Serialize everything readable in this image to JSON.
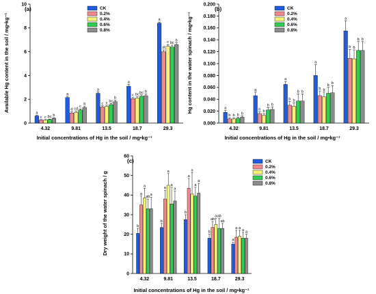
{
  "colors": {
    "CK": "#1f5ce0",
    "0.2%": "#f08a8a",
    "0.4%": "#f5f07a",
    "0.6%": "#33cc55",
    "0.8%": "#8c8c8c"
  },
  "chart_data": [
    {
      "panel": "(a)",
      "type": "bar",
      "xlabel": "Initial concentrations of Hg in the soil / mg•kg⁻¹",
      "ylabel": "Available Hg content in the soil / mg•kg⁻¹",
      "ylim": [
        0,
        10
      ],
      "yticks": [
        "0",
        "2",
        "4",
        "6",
        "8",
        "10"
      ],
      "categories": [
        "4.32",
        "9.81",
        "13.5",
        "18.7",
        "29.3"
      ],
      "legend": [
        "CK",
        "0.2%",
        "0.4%",
        "0.6%",
        "0.8%"
      ],
      "legend_position": "top-left",
      "series": [
        {
          "name": "CK",
          "values": [
            0.6,
            2.15,
            2.5,
            3.1,
            8.4
          ],
          "err": [
            0.05,
            0.1,
            0.12,
            0.15,
            0.1
          ]
        },
        {
          "name": "0.2%",
          "values": [
            0.25,
            0.85,
            1.35,
            2.05,
            6.0
          ],
          "err": [
            0.04,
            0.1,
            0.1,
            0.1,
            0.15
          ]
        },
        {
          "name": "0.4%",
          "values": [
            0.25,
            0.9,
            1.4,
            2.1,
            6.45
          ],
          "err": [
            0.04,
            0.1,
            0.1,
            0.1,
            0.15
          ]
        },
        {
          "name": "0.6%",
          "values": [
            0.3,
            1.1,
            1.55,
            2.25,
            6.4
          ],
          "err": [
            0.04,
            0.1,
            0.1,
            0.12,
            0.15
          ]
        },
        {
          "name": "0.8%",
          "values": [
            0.4,
            1.3,
            1.8,
            2.3,
            6.6
          ],
          "err": [
            0.05,
            0.1,
            0.12,
            0.15,
            0.15
          ]
        }
      ],
      "letters": [
        [
          "a",
          "c",
          "c",
          "bc",
          "b"
        ],
        [
          "a",
          "d",
          "cd",
          "c",
          "b"
        ],
        [
          "a",
          "c",
          "c",
          "bc",
          "b"
        ],
        [
          "a",
          "c",
          "bc",
          "bc",
          "b"
        ],
        [
          "a",
          "d",
          "c",
          "bc",
          "b"
        ]
      ]
    },
    {
      "panel": "(b)",
      "type": "bar",
      "xlabel": "Initial concentrations of Hg in the soil / mg•kg⁻¹",
      "ylabel": "Hg content in the water spinach / mg•kg⁻¹",
      "ylim": [
        0,
        0.2
      ],
      "yticks": [
        "0.000",
        "0.020",
        "0.040",
        "0.060",
        "0.080",
        "0.100",
        "0.120",
        "0.140",
        "0.160",
        "0.180",
        "0.200"
      ],
      "categories": [
        "4.32",
        "9.81",
        "13.5",
        "18.7",
        "29.3"
      ],
      "legend": [
        "CK",
        "0.2%",
        "0.4%",
        "0.6%",
        "0.8%"
      ],
      "legend_position": "top-left",
      "series": [
        {
          "name": "CK",
          "values": [
            0.018,
            0.046,
            0.065,
            0.08,
            0.155
          ],
          "err": [
            0.003,
            0.006,
            0.005,
            0.018,
            0.017
          ]
        },
        {
          "name": "0.2%",
          "values": [
            0.007,
            0.016,
            0.03,
            0.046,
            0.109
          ],
          "err": [
            0.002,
            0.003,
            0.006,
            0.008,
            0.015
          ]
        },
        {
          "name": "0.4%",
          "values": [
            0.007,
            0.013,
            0.028,
            0.044,
            0.108
          ],
          "err": [
            0.002,
            0.003,
            0.006,
            0.008,
            0.015
          ]
        },
        {
          "name": "0.6%",
          "values": [
            0.008,
            0.022,
            0.037,
            0.05,
            0.122
          ],
          "err": [
            0.002,
            0.004,
            0.012,
            0.01,
            0.015
          ]
        },
        {
          "name": "0.8%",
          "values": [
            0.01,
            0.023,
            0.037,
            0.051,
            0.122
          ],
          "err": [
            0.002,
            0.004,
            0.012,
            0.012,
            0.015
          ]
        }
      ],
      "letters": [
        [
          "a",
          "b",
          "b",
          "b",
          "b"
        ],
        [
          "a",
          "b",
          "b",
          "b",
          "b"
        ],
        [
          "a",
          "b",
          "b",
          "b",
          "b"
        ],
        [
          "a",
          "b",
          "b",
          "b",
          "b"
        ],
        [
          "a",
          "b",
          "b",
          "b",
          "b"
        ]
      ]
    },
    {
      "panel": "(c)",
      "type": "bar",
      "xlabel": "Initial concentrations of Hg in the soil / mg•kg⁻¹",
      "ylabel": "Dry weight of the water spinach / g",
      "ylim": [
        0,
        60
      ],
      "yticks": [
        "0",
        "10",
        "20",
        "30",
        "40",
        "50",
        "60"
      ],
      "categories": [
        "4.32",
        "9.81",
        "13.5",
        "18.7",
        "29.3"
      ],
      "legend": [
        "CK",
        "0.2%",
        "0.4%",
        "0.6%",
        "0.8%"
      ],
      "legend_position": "top-right",
      "series": [
        {
          "name": "CK",
          "values": [
            20.5,
            23.5,
            27.5,
            18,
            15
          ],
          "err": [
            2.5,
            2,
            2.5,
            2,
            1
          ]
        },
        {
          "name": "0.2%",
          "values": [
            35,
            38,
            43.5,
            23.5,
            18.5
          ],
          "err": [
            4.5,
            4.5,
            5,
            3,
            3.5
          ]
        },
        {
          "name": "0.4%",
          "values": [
            38.5,
            45,
            40.5,
            25,
            19
          ],
          "err": [
            5,
            6,
            11,
            3,
            3
          ]
        },
        {
          "name": "0.6%",
          "values": [
            33,
            35.5,
            39.5,
            23,
            18
          ],
          "err": [
            5,
            8.5,
            4.5,
            5,
            3
          ]
        },
        {
          "name": "0.8%",
          "values": [
            33,
            37,
            41,
            23,
            18
          ],
          "err": [
            6,
            5,
            5,
            2.5,
            2
          ]
        }
      ],
      "letters": [
        [
          "b",
          "a",
          "a",
          "ab",
          "a"
        ],
        [
          "b",
          "a",
          "a",
          "a",
          "a"
        ],
        [
          "b",
          "a",
          "a",
          "a",
          "a"
        ],
        [
          "b",
          "ab",
          "a",
          "ab",
          "ab"
        ],
        [
          "a",
          "a",
          "a",
          "a",
          "a"
        ]
      ]
    }
  ]
}
